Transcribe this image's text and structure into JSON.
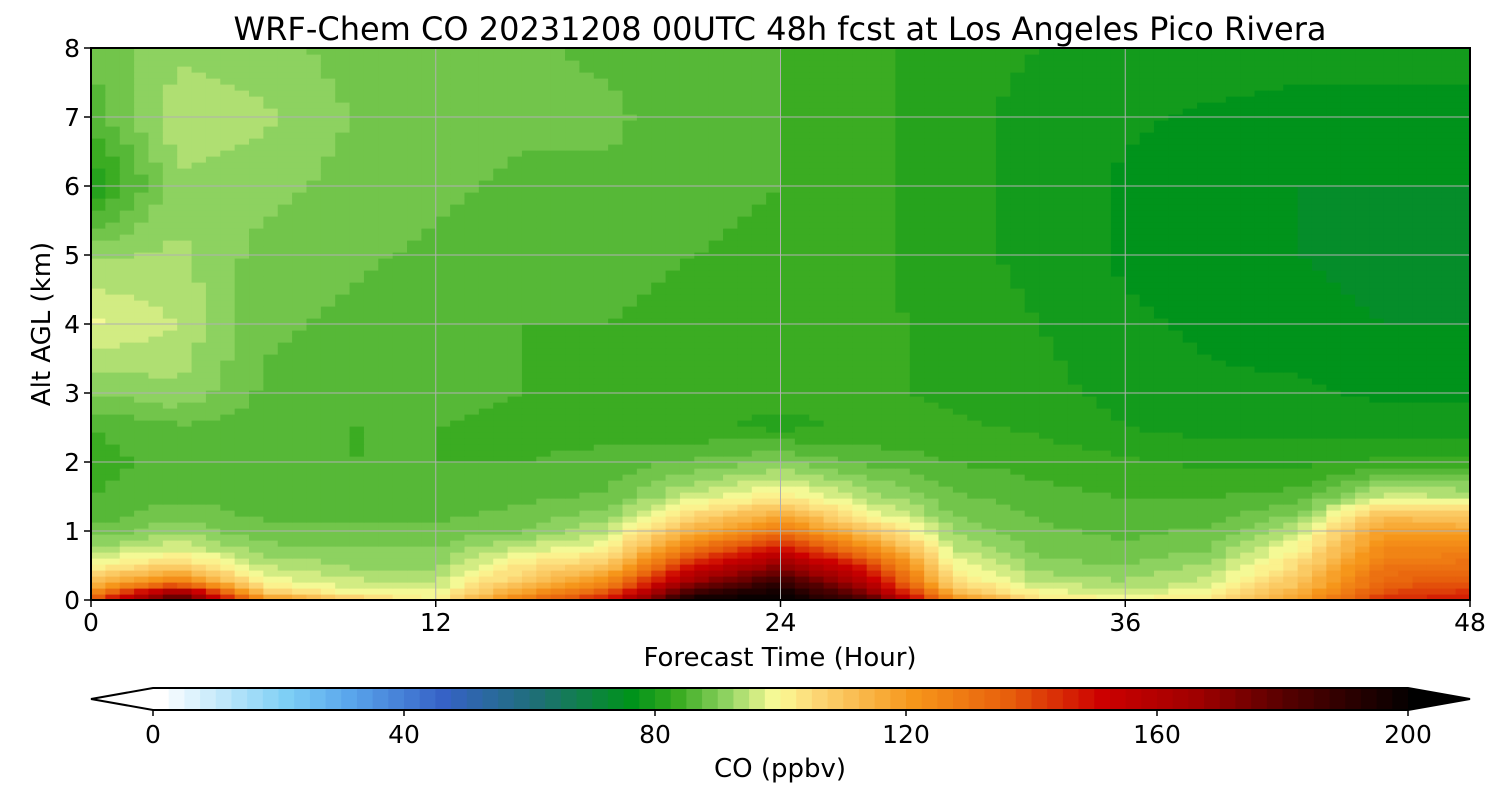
{
  "chart_data": {
    "type": "heatmap",
    "title": "WRF-Chem CO  20231208 00UTC 48h fcst at Los Angeles Pico Rivera",
    "xlabel": "Forecast Time (Hour)",
    "ylabel": "Alt AGL (km)",
    "xlim": [
      0,
      48
    ],
    "ylim": [
      0,
      8
    ],
    "x_ticks": [
      "0",
      "12",
      "24",
      "36",
      "48"
    ],
    "y_ticks": [
      "0",
      "1",
      "2",
      "3",
      "4",
      "5",
      "6",
      "7",
      "8"
    ],
    "grid": true,
    "x_hours": [
      0,
      3,
      6,
      9,
      12,
      15,
      18,
      21,
      24,
      27,
      30,
      33,
      36,
      39,
      42,
      45,
      48
    ],
    "z_km": [
      0,
      0.1,
      0.25,
      0.5,
      0.75,
      1.0,
      1.25,
      1.5,
      2,
      2.5,
      3,
      4,
      5,
      6,
      7,
      8
    ],
    "co_ppbv": [
      [
        140,
        185,
        125,
        110,
        100,
        130,
        150,
        200,
        200,
        185,
        125,
        105,
        100,
        105,
        120,
        145,
        150
      ],
      [
        125,
        175,
        110,
        100,
        98,
        120,
        140,
        190,
        200,
        175,
        115,
        100,
        96,
        100,
        115,
        140,
        145
      ],
      [
        112,
        130,
        100,
        96,
        95,
        110,
        125,
        170,
        190,
        160,
        105,
        95,
        93,
        96,
        110,
        135,
        138
      ],
      [
        100,
        108,
        95,
        92,
        92,
        103,
        110,
        150,
        170,
        145,
        100,
        91,
        90,
        93,
        105,
        130,
        132
      ],
      [
        93,
        97,
        91,
        90,
        90,
        96,
        100,
        130,
        150,
        125,
        95,
        89,
        88,
        90,
        100,
        125,
        125
      ],
      [
        88,
        92,
        88,
        88,
        88,
        90,
        95,
        115,
        130,
        110,
        92,
        88,
        87,
        88,
        95,
        120,
        118
      ],
      [
        86,
        89,
        87,
        87,
        87,
        88,
        91,
        105,
        115,
        100,
        90,
        87,
        86,
        86,
        90,
        110,
        108
      ],
      [
        85,
        87,
        86,
        86,
        86,
        87,
        88,
        96,
        102,
        94,
        88,
        86,
        85,
        85,
        86,
        96,
        95
      ],
      [
        84,
        86,
        85,
        85,
        85,
        85,
        86,
        88,
        90,
        87,
        85,
        84,
        83,
        82,
        82,
        83,
        83
      ],
      [
        85,
        87,
        86,
        85,
        85,
        84,
        84,
        83,
        82,
        83,
        83,
        82,
        80,
        79,
        79,
        79,
        79
      ],
      [
        90,
        92,
        87,
        86,
        86,
        85,
        84,
        83,
        83,
        83,
        82,
        81,
        79,
        78,
        78,
        77,
        77
      ],
      [
        98,
        95,
        88,
        87,
        86,
        85,
        85,
        84,
        84,
        83,
        82,
        80,
        78,
        77,
        76,
        75,
        75
      ],
      [
        92,
        93,
        89,
        88,
        87,
        86,
        86,
        85,
        84,
        83,
        81,
        79,
        77,
        76,
        75,
        74,
        74
      ],
      [
        80,
        92,
        91,
        89,
        88,
        87,
        87,
        86,
        85,
        83,
        81,
        79,
        77,
        76,
        75,
        75,
        75
      ],
      [
        86,
        94,
        93,
        90,
        89,
        88,
        88,
        86,
        85,
        83,
        81,
        79,
        78,
        77,
        77,
        77,
        77
      ],
      [
        88,
        92,
        91,
        89,
        89,
        88,
        87,
        86,
        85,
        83,
        81,
        80,
        79,
        79,
        78,
        78,
        78
      ]
    ],
    "colorbar": {
      "label": "CO  (ppbv)",
      "min": 0,
      "max": 200,
      "ticks": [
        "0",
        "40",
        "80",
        "120",
        "160",
        "200"
      ],
      "extend": "both",
      "colors": [
        {
          "v": 0,
          "c": "#ffffff"
        },
        {
          "v": 20,
          "c": "#7ecff5"
        },
        {
          "v": 30,
          "c": "#5aa6ec"
        },
        {
          "v": 45,
          "c": "#3662c6"
        },
        {
          "v": 60,
          "c": "#1e6f75"
        },
        {
          "v": 75,
          "c": "#00931b"
        },
        {
          "v": 82,
          "c": "#35a91e"
        },
        {
          "v": 90,
          "c": "#8dd260"
        },
        {
          "v": 98,
          "c": "#fbfc98"
        },
        {
          "v": 105,
          "c": "#fcd472"
        },
        {
          "v": 120,
          "c": "#f6961a"
        },
        {
          "v": 135,
          "c": "#e75f0c"
        },
        {
          "v": 150,
          "c": "#cc0000"
        },
        {
          "v": 165,
          "c": "#a00000"
        },
        {
          "v": 180,
          "c": "#520000"
        },
        {
          "v": 200,
          "c": "#000000"
        }
      ]
    }
  }
}
